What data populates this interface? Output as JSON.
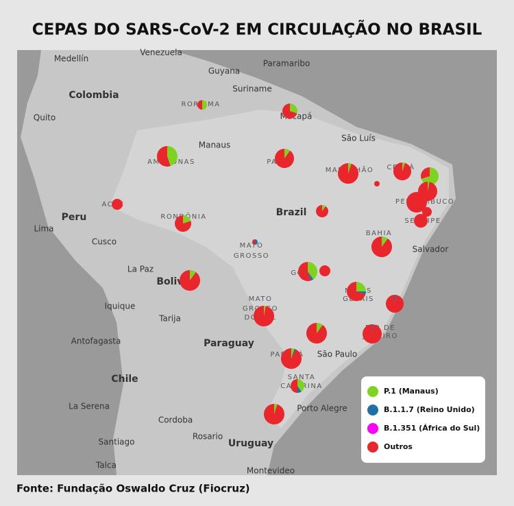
{
  "title": "CEPAS DO SARS-CoV-2 EM CIRCULAÇÃO NO BRASIL",
  "source": "Fonte: Fundação Oswaldo Cruz (Fiocruz)",
  "strains": [
    {
      "name": "P.1 (Manaus)",
      "color": "#7ed321"
    },
    {
      "name": "B.1.1.7 (Reino Unido)",
      "color": "#1f6fa8"
    },
    {
      "name": "B.1.351 (África do Sul)",
      "color": "#ff00ff"
    },
    {
      "name": "Outros",
      "color": "#e8262b"
    }
  ],
  "map_labels": [
    "Venezuela",
    "Medellín",
    "Guyana",
    "Paramaribo",
    "Suriname",
    "Colombia",
    "RORAIMA",
    "Macapá",
    "Quito",
    "Manaus",
    "São Luís",
    "AMAZONAS",
    "PARÁ",
    "MARANHÃO",
    "CEARÁ",
    "ACRE",
    "Peru",
    "RONDÔNIA",
    "Brazil",
    "PERNAMBUCO",
    "SERGIPE",
    "Lima",
    "BAHIA",
    "Cusco",
    "MATO",
    "GROSSO",
    "Salvador",
    "La Paz",
    "GOIÁS",
    "Bolivia",
    "MINAS",
    "GERAIS",
    "Iquique",
    "MATO",
    "GROSSO",
    "DO SUL",
    "Tarija",
    "RIO DE",
    "JANEIRO",
    "Antofagasta",
    "Paraguay",
    "PARANÁ",
    "São Paulo",
    "SANTA",
    "CATARINA",
    "Chile",
    "La Serena",
    "Porto Alegre",
    "Cordoba",
    "Rosario",
    "Santiago",
    "Uruguay",
    "Talca",
    "Montevideo"
  ],
  "pies": [
    {
      "values": [
        50,
        0,
        0,
        50
      ]
    },
    {
      "values": [
        30,
        0,
        0,
        70
      ]
    },
    {
      "values": [
        45,
        0,
        0,
        55
      ]
    },
    {
      "values": [
        10,
        0,
        0,
        90
      ]
    },
    {
      "values": [
        5,
        0,
        0,
        95
      ]
    },
    {
      "values": [
        0,
        0,
        0,
        100
      ]
    },
    {
      "values": [
        5,
        0,
        0,
        95
      ]
    },
    {
      "values": [
        70,
        0,
        0,
        30
      ]
    },
    {
      "values": [
        3,
        0,
        0,
        97
      ]
    },
    {
      "values": [
        0,
        0,
        0,
        100
      ]
    },
    {
      "values": [
        0,
        0,
        0,
        100
      ]
    },
    {
      "values": [
        0,
        0,
        0,
        100
      ]
    },
    {
      "values": [
        0,
        0,
        0,
        100
      ]
    },
    {
      "values": [
        20,
        0,
        0,
        80
      ]
    },
    {
      "values": [
        10,
        0,
        0,
        90
      ]
    },
    {
      "values": [
        10,
        0,
        0,
        90
      ]
    },
    {
      "values": [
        0,
        50,
        0,
        50
      ]
    },
    {
      "values": [
        40,
        5,
        0,
        55
      ]
    },
    {
      "values": [
        0,
        0,
        0,
        100
      ]
    },
    {
      "values": [
        10,
        0,
        0,
        90
      ]
    },
    {
      "values": [
        25,
        5,
        0,
        70
      ]
    },
    {
      "values": [
        0,
        3,
        0,
        97
      ]
    },
    {
      "values": [
        3,
        0,
        0,
        97
      ]
    },
    {
      "values": [
        10,
        0,
        0,
        90
      ]
    },
    {
      "values": [
        0,
        2,
        0,
        98
      ]
    },
    {
      "values": [
        5,
        2,
        0,
        93
      ]
    },
    {
      "values": [
        40,
        10,
        0,
        50
      ]
    },
    {
      "values": [
        5,
        0,
        0,
        95
      ]
    }
  ]
}
